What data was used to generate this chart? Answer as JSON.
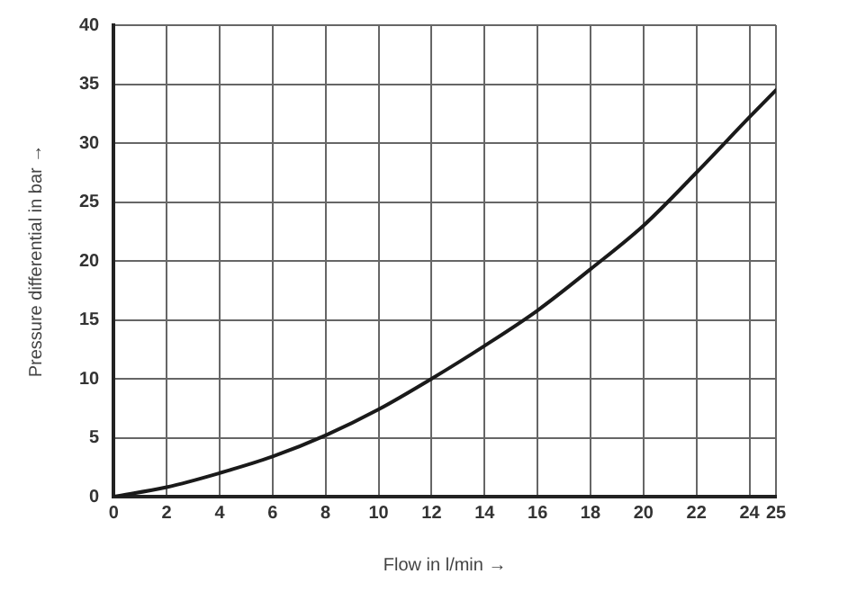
{
  "chart_data": {
    "type": "line",
    "xlabel": "Flow in l/min →",
    "ylabel": "Pressure differential in bar →",
    "x": [
      0,
      2,
      4,
      6,
      8,
      10,
      12,
      14,
      16,
      18,
      20,
      22,
      24,
      25
    ],
    "series": [
      {
        "color": "#1a1a1a",
        "values": [
          0,
          0.8,
          2,
          3.4,
          5.2,
          7.4,
          10,
          12.8,
          15.8,
          19.3,
          23,
          27.5,
          32.2,
          34.5
        ]
      }
    ],
    "xlim": [
      0,
      25
    ],
    "xticks": [
      0,
      2,
      4,
      6,
      8,
      10,
      12,
      14,
      16,
      18,
      20,
      22,
      24,
      25
    ],
    "ylim": [
      0,
      40
    ],
    "yticks": [
      0,
      5,
      10,
      15,
      20,
      25,
      30,
      35,
      40
    ],
    "grid": true,
    "legend": false,
    "marker": "none",
    "line_style": "solid"
  }
}
